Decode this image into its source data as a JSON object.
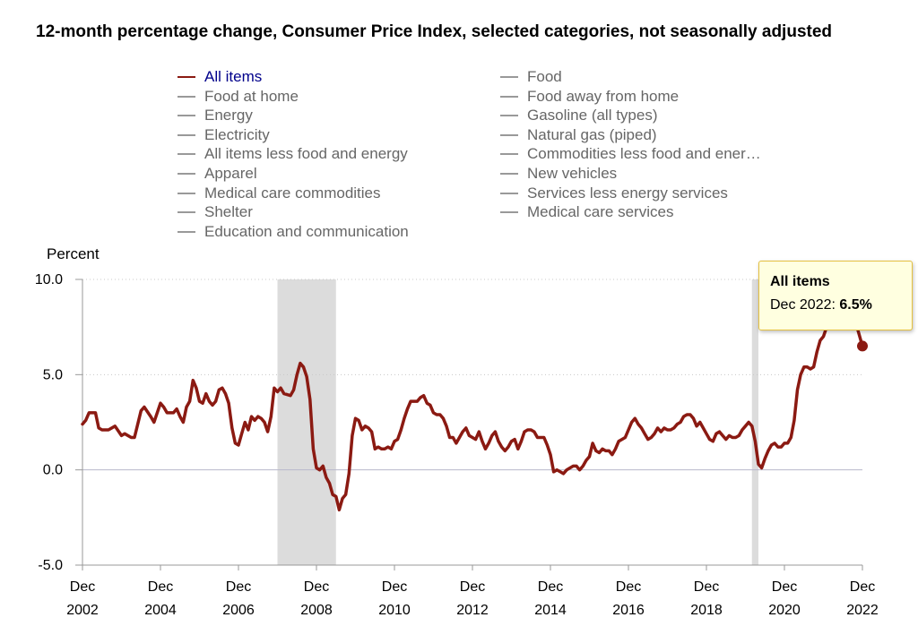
{
  "title": "12-month percentage change, Consumer Price Index, selected categories, not seasonally adjusted",
  "legend": {
    "left": [
      "All items",
      "Food at home",
      "Energy",
      "Electricity",
      "All items less food and energy",
      "Apparel",
      "Medical care commodities",
      "Shelter",
      "Education and communication"
    ],
    "right": [
      "Food",
      "Food away from home",
      "Gasoline (all types)",
      "Natural gas (piped)",
      "Commodities less food and ener…",
      "New vehicles",
      "Services less energy services",
      "Medical care services"
    ],
    "active": "All items"
  },
  "colors": {
    "series": "#8b1a12",
    "recession": "#dcdcdc",
    "legend_active": "#00008b",
    "legend_inactive": "#666666"
  },
  "tooltip": {
    "title": "All items",
    "label": "Dec 2022:",
    "value": "6.5%"
  },
  "chart_data": {
    "type": "line",
    "ylabel": "Percent",
    "ylim": [
      -5.0,
      10.0
    ],
    "yticks": [
      "10.0",
      "5.0",
      "0.0",
      "-5.0"
    ],
    "yticks_values": [
      10,
      5,
      0,
      -5
    ],
    "xticks": [
      {
        "month": "Dec",
        "year": "2002"
      },
      {
        "month": "Dec",
        "year": "2004"
      },
      {
        "month": "Dec",
        "year": "2006"
      },
      {
        "month": "Dec",
        "year": "2008"
      },
      {
        "month": "Dec",
        "year": "2010"
      },
      {
        "month": "Dec",
        "year": "2012"
      },
      {
        "month": "Dec",
        "year": "2014"
      },
      {
        "month": "Dec",
        "year": "2016"
      },
      {
        "month": "Dec",
        "year": "2018"
      },
      {
        "month": "Dec",
        "year": "2020"
      },
      {
        "month": "Dec",
        "year": "2022"
      }
    ],
    "xticks_values": [
      "2002-12",
      "2004-12",
      "2006-12",
      "2008-12",
      "2010-12",
      "2012-12",
      "2014-12",
      "2016-12",
      "2018-12",
      "2020-12",
      "2022-12"
    ],
    "recessions": [
      [
        "2007-12",
        "2009-06"
      ],
      [
        "2020-02",
        "2020-04"
      ]
    ],
    "series": [
      {
        "name": "All items",
        "points": [
          [
            "2002-12",
            2.4
          ],
          [
            "2003-01",
            2.6
          ],
          [
            "2003-02",
            3.0
          ],
          [
            "2003-04",
            3.0
          ],
          [
            "2003-05",
            2.2
          ],
          [
            "2003-06",
            2.1
          ],
          [
            "2003-08",
            2.1
          ],
          [
            "2003-10",
            2.3
          ],
          [
            "2003-12",
            1.8
          ],
          [
            "2004-01",
            1.9
          ],
          [
            "2004-03",
            1.7
          ],
          [
            "2004-04",
            1.7
          ],
          [
            "2004-06",
            3.1
          ],
          [
            "2004-07",
            3.3
          ],
          [
            "2004-09",
            2.8
          ],
          [
            "2004-10",
            2.5
          ],
          [
            "2004-12",
            3.5
          ],
          [
            "2005-01",
            3.3
          ],
          [
            "2005-02",
            3.0
          ],
          [
            "2005-04",
            3.0
          ],
          [
            "2005-05",
            3.2
          ],
          [
            "2005-06",
            2.8
          ],
          [
            "2005-07",
            2.5
          ],
          [
            "2005-08",
            3.3
          ],
          [
            "2005-09",
            3.6
          ],
          [
            "2005-10",
            4.7
          ],
          [
            "2005-11",
            4.3
          ],
          [
            "2005-12",
            3.6
          ],
          [
            "2006-01",
            3.5
          ],
          [
            "2006-02",
            4.0
          ],
          [
            "2006-03",
            3.6
          ],
          [
            "2006-04",
            3.4
          ],
          [
            "2006-05",
            3.6
          ],
          [
            "2006-06",
            4.2
          ],
          [
            "2006-07",
            4.3
          ],
          [
            "2006-08",
            4.0
          ],
          [
            "2006-09",
            3.5
          ],
          [
            "2006-10",
            2.2
          ],
          [
            "2006-11",
            1.4
          ],
          [
            "2006-12",
            1.3
          ],
          [
            "2007-01",
            1.9
          ],
          [
            "2007-02",
            2.5
          ],
          [
            "2007-03",
            2.1
          ],
          [
            "2007-04",
            2.8
          ],
          [
            "2007-05",
            2.6
          ],
          [
            "2007-06",
            2.8
          ],
          [
            "2007-07",
            2.7
          ],
          [
            "2007-08",
            2.5
          ],
          [
            "2007-09",
            2.0
          ],
          [
            "2007-10",
            2.8
          ],
          [
            "2007-11",
            4.3
          ],
          [
            "2007-12",
            4.1
          ],
          [
            "2008-01",
            4.3
          ],
          [
            "2008-02",
            4.0
          ],
          [
            "2008-04",
            3.9
          ],
          [
            "2008-05",
            4.2
          ],
          [
            "2008-06",
            5.0
          ],
          [
            "2008-07",
            5.6
          ],
          [
            "2008-08",
            5.4
          ],
          [
            "2008-09",
            4.9
          ],
          [
            "2008-10",
            3.7
          ],
          [
            "2008-11",
            1.1
          ],
          [
            "2008-12",
            0.1
          ],
          [
            "2009-01",
            0.0
          ],
          [
            "2009-02",
            0.2
          ],
          [
            "2009-03",
            -0.4
          ],
          [
            "2009-04",
            -0.7
          ],
          [
            "2009-05",
            -1.3
          ],
          [
            "2009-06",
            -1.4
          ],
          [
            "2009-07",
            -2.1
          ],
          [
            "2009-08",
            -1.5
          ],
          [
            "2009-09",
            -1.3
          ],
          [
            "2009-10",
            -0.2
          ],
          [
            "2009-11",
            1.8
          ],
          [
            "2009-12",
            2.7
          ],
          [
            "2010-01",
            2.6
          ],
          [
            "2010-02",
            2.1
          ],
          [
            "2010-03",
            2.3
          ],
          [
            "2010-04",
            2.2
          ],
          [
            "2010-05",
            2.0
          ],
          [
            "2010-06",
            1.1
          ],
          [
            "2010-07",
            1.2
          ],
          [
            "2010-08",
            1.1
          ],
          [
            "2010-09",
            1.1
          ],
          [
            "2010-10",
            1.2
          ],
          [
            "2010-11",
            1.1
          ],
          [
            "2010-12",
            1.5
          ],
          [
            "2011-01",
            1.6
          ],
          [
            "2011-02",
            2.1
          ],
          [
            "2011-03",
            2.7
          ],
          [
            "2011-04",
            3.2
          ],
          [
            "2011-05",
            3.6
          ],
          [
            "2011-06",
            3.6
          ],
          [
            "2011-07",
            3.6
          ],
          [
            "2011-08",
            3.8
          ],
          [
            "2011-09",
            3.9
          ],
          [
            "2011-10",
            3.5
          ],
          [
            "2011-11",
            3.4
          ],
          [
            "2011-12",
            3.0
          ],
          [
            "2012-01",
            2.9
          ],
          [
            "2012-02",
            2.9
          ],
          [
            "2012-03",
            2.7
          ],
          [
            "2012-04",
            2.3
          ],
          [
            "2012-05",
            1.7
          ],
          [
            "2012-06",
            1.7
          ],
          [
            "2012-07",
            1.4
          ],
          [
            "2012-08",
            1.7
          ],
          [
            "2012-09",
            2.0
          ],
          [
            "2012-10",
            2.2
          ],
          [
            "2012-11",
            1.8
          ],
          [
            "2012-12",
            1.7
          ],
          [
            "2013-01",
            1.6
          ],
          [
            "2013-02",
            2.0
          ],
          [
            "2013-03",
            1.5
          ],
          [
            "2013-04",
            1.1
          ],
          [
            "2013-05",
            1.4
          ],
          [
            "2013-06",
            1.8
          ],
          [
            "2013-07",
            2.0
          ],
          [
            "2013-08",
            1.5
          ],
          [
            "2013-09",
            1.2
          ],
          [
            "2013-10",
            1.0
          ],
          [
            "2013-11",
            1.2
          ],
          [
            "2013-12",
            1.5
          ],
          [
            "2014-01",
            1.6
          ],
          [
            "2014-02",
            1.1
          ],
          [
            "2014-03",
            1.5
          ],
          [
            "2014-04",
            2.0
          ],
          [
            "2014-05",
            2.1
          ],
          [
            "2014-06",
            2.1
          ],
          [
            "2014-07",
            2.0
          ],
          [
            "2014-08",
            1.7
          ],
          [
            "2014-09",
            1.7
          ],
          [
            "2014-10",
            1.7
          ],
          [
            "2014-11",
            1.3
          ],
          [
            "2014-12",
            0.8
          ],
          [
            "2015-01",
            -0.1
          ],
          [
            "2015-02",
            0.0
          ],
          [
            "2015-03",
            -0.1
          ],
          [
            "2015-04",
            -0.2
          ],
          [
            "2015-05",
            0.0
          ],
          [
            "2015-06",
            0.1
          ],
          [
            "2015-07",
            0.2
          ],
          [
            "2015-08",
            0.2
          ],
          [
            "2015-09",
            0.0
          ],
          [
            "2015-10",
            0.2
          ],
          [
            "2015-11",
            0.5
          ],
          [
            "2015-12",
            0.7
          ],
          [
            "2016-01",
            1.4
          ],
          [
            "2016-02",
            1.0
          ],
          [
            "2016-03",
            0.9
          ],
          [
            "2016-04",
            1.1
          ],
          [
            "2016-05",
            1.0
          ],
          [
            "2016-06",
            1.0
          ],
          [
            "2016-07",
            0.8
          ],
          [
            "2016-08",
            1.1
          ],
          [
            "2016-09",
            1.5
          ],
          [
            "2016-10",
            1.6
          ],
          [
            "2016-11",
            1.7
          ],
          [
            "2016-12",
            2.1
          ],
          [
            "2017-01",
            2.5
          ],
          [
            "2017-02",
            2.7
          ],
          [
            "2017-03",
            2.4
          ],
          [
            "2017-04",
            2.2
          ],
          [
            "2017-05",
            1.9
          ],
          [
            "2017-06",
            1.6
          ],
          [
            "2017-07",
            1.7
          ],
          [
            "2017-08",
            1.9
          ],
          [
            "2017-09",
            2.2
          ],
          [
            "2017-10",
            2.0
          ],
          [
            "2017-11",
            2.2
          ],
          [
            "2017-12",
            2.1
          ],
          [
            "2018-01",
            2.1
          ],
          [
            "2018-02",
            2.2
          ],
          [
            "2018-03",
            2.4
          ],
          [
            "2018-04",
            2.5
          ],
          [
            "2018-05",
            2.8
          ],
          [
            "2018-06",
            2.9
          ],
          [
            "2018-07",
            2.9
          ],
          [
            "2018-08",
            2.7
          ],
          [
            "2018-09",
            2.3
          ],
          [
            "2018-10",
            2.5
          ],
          [
            "2018-11",
            2.2
          ],
          [
            "2018-12",
            1.9
          ],
          [
            "2019-01",
            1.6
          ],
          [
            "2019-02",
            1.5
          ],
          [
            "2019-03",
            1.9
          ],
          [
            "2019-04",
            2.0
          ],
          [
            "2019-05",
            1.8
          ],
          [
            "2019-06",
            1.6
          ],
          [
            "2019-07",
            1.8
          ],
          [
            "2019-08",
            1.7
          ],
          [
            "2019-09",
            1.7
          ],
          [
            "2019-10",
            1.8
          ],
          [
            "2019-11",
            2.1
          ],
          [
            "2019-12",
            2.3
          ],
          [
            "2020-01",
            2.5
          ],
          [
            "2020-02",
            2.3
          ],
          [
            "2020-03",
            1.5
          ],
          [
            "2020-04",
            0.3
          ],
          [
            "2020-05",
            0.1
          ],
          [
            "2020-06",
            0.6
          ],
          [
            "2020-07",
            1.0
          ],
          [
            "2020-08",
            1.3
          ],
          [
            "2020-09",
            1.4
          ],
          [
            "2020-10",
            1.2
          ],
          [
            "2020-11",
            1.2
          ],
          [
            "2020-12",
            1.4
          ],
          [
            "2021-01",
            1.4
          ],
          [
            "2021-02",
            1.7
          ],
          [
            "2021-03",
            2.6
          ],
          [
            "2021-04",
            4.2
          ],
          [
            "2021-05",
            5.0
          ],
          [
            "2021-06",
            5.4
          ],
          [
            "2021-07",
            5.4
          ],
          [
            "2021-08",
            5.3
          ],
          [
            "2021-09",
            5.4
          ],
          [
            "2021-10",
            6.2
          ],
          [
            "2021-11",
            6.8
          ],
          [
            "2021-12",
            7.0
          ],
          [
            "2022-01",
            7.5
          ],
          [
            "2022-02",
            7.9
          ],
          [
            "2022-03",
            8.5
          ],
          [
            "2022-04",
            8.3
          ],
          [
            "2022-05",
            8.6
          ],
          [
            "2022-06",
            9.1
          ],
          [
            "2022-07",
            8.5
          ],
          [
            "2022-08",
            8.3
          ],
          [
            "2022-09",
            8.2
          ],
          [
            "2022-10",
            7.7
          ],
          [
            "2022-11",
            7.1
          ],
          [
            "2022-12",
            6.5
          ]
        ]
      }
    ]
  }
}
